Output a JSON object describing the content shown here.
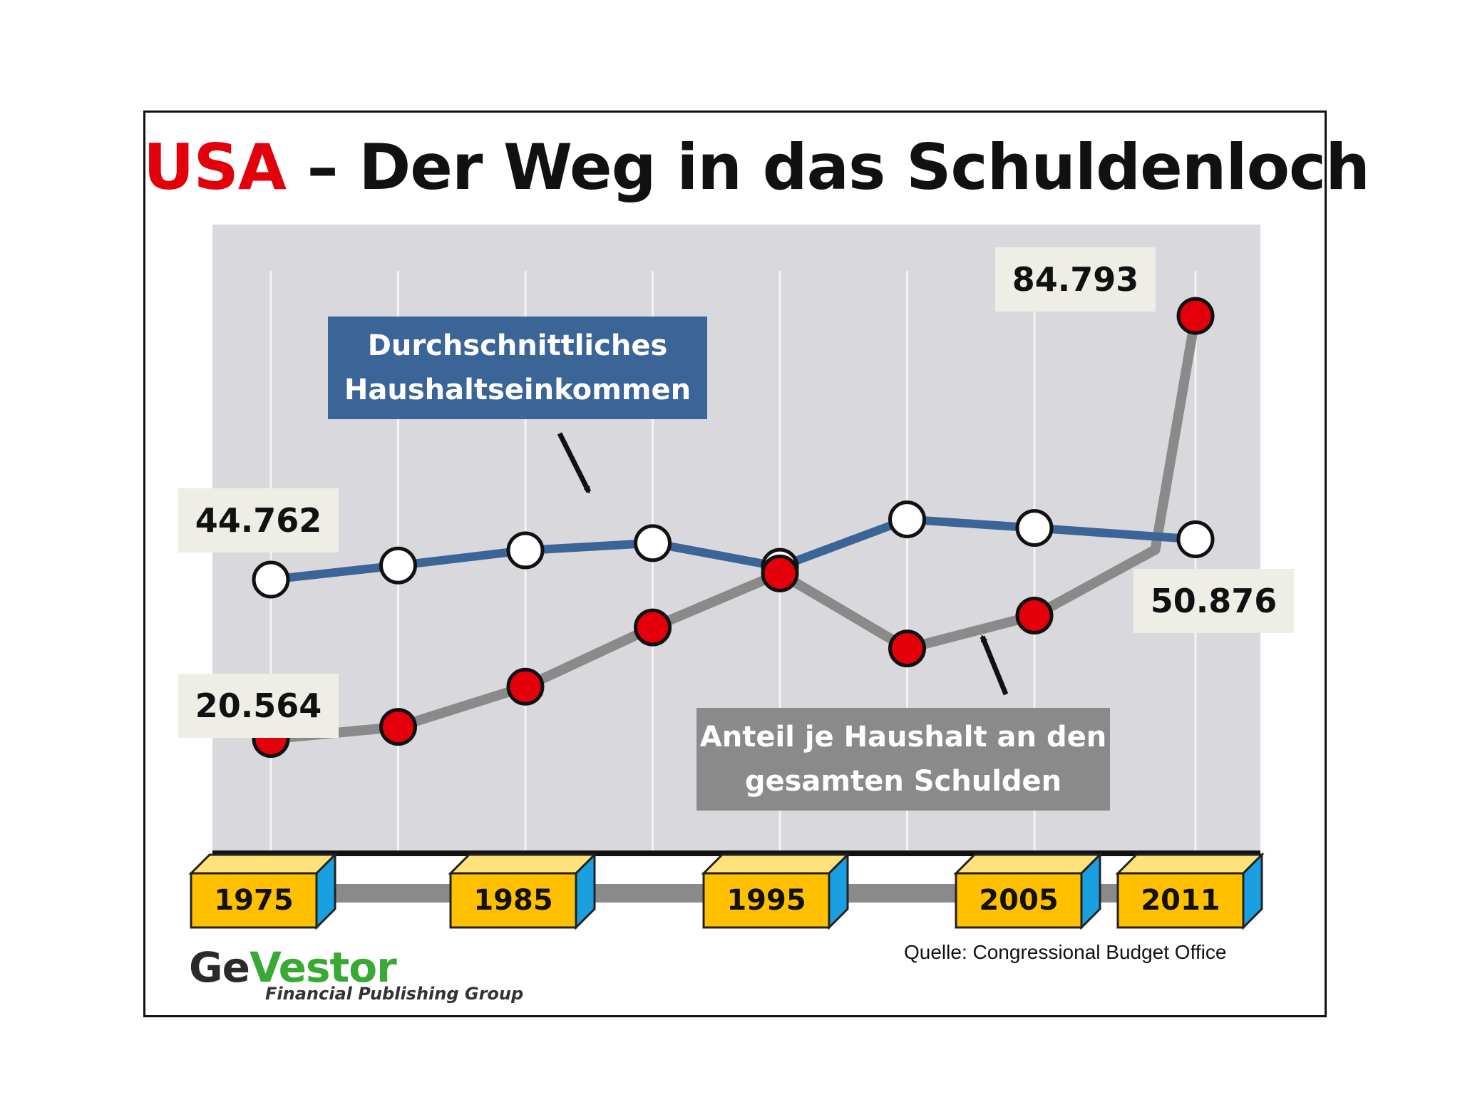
{
  "title": {
    "highlight": "USA",
    "rest": " – Der Weg in das Schuldenloch"
  },
  "colors": {
    "income_line": "#3b6497",
    "debt_line": "#8a8a8a",
    "debt_marker": "#e3000b",
    "income_marker": "#ffffff",
    "plot_background": "#d9d9dd",
    "year_box": "#ffc000",
    "year_box_side": "#1aa0e0"
  },
  "chart_data": {
    "type": "line",
    "title": "USA – Der Weg in das Schuldenloch",
    "x": [
      1975,
      1980,
      1985,
      1990,
      1995,
      2000,
      2005,
      2011
    ],
    "x_ticks": [
      "1975",
      "1985",
      "1995",
      "2005",
      "2011"
    ],
    "ylim": [
      15000,
      90000
    ],
    "grid": "vertical",
    "series": [
      {
        "name": "Durchschnittliches Haushaltseinkommen",
        "values": [
          44762,
          46900,
          49200,
          50300,
          46700,
          53900,
          52600,
          50876
        ],
        "marker": "white"
      },
      {
        "name": "Anteil je Haushalt an den gesamten Schulden",
        "values": [
          20564,
          22400,
          28500,
          37500,
          45700,
          34300,
          39300,
          84793
        ],
        "marker": "red",
        "knee": {
          "x": 2009.5,
          "value": 49300
        }
      }
    ],
    "value_labels": [
      "44.762",
      "20.564",
      "84.793",
      "50.876"
    ],
    "annotations": [
      {
        "id": "income",
        "lines": [
          "Durchschnittliches",
          "Haushaltseinkommen"
        ],
        "color": "#3b6497"
      },
      {
        "id": "debt",
        "lines": [
          "Anteil je Haushalt an den",
          "gesamten Schulden"
        ],
        "color": "#8a8a8a"
      }
    ]
  },
  "source": "Quelle:  Congressional Budget Office",
  "logo": {
    "part1": "Ge",
    "part2": "Vestor",
    "subtitle": "Financial Publishing Group"
  }
}
